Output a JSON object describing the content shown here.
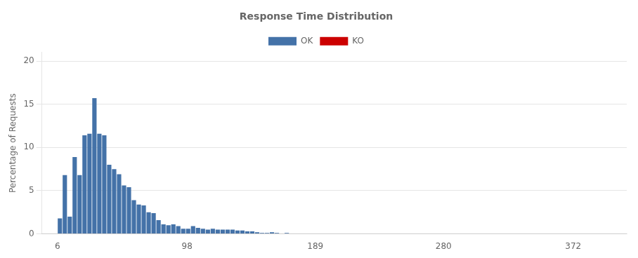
{
  "chart_data": {
    "type": "histogram",
    "title": "Response Time Distribution",
    "ylabel": "Percentage of Requests",
    "bins": [
      6,
      9.5,
      13,
      16.5,
      20,
      23.5,
      27,
      30.5,
      34,
      37.5,
      41,
      44.5,
      48,
      51.5,
      55,
      58.5,
      62,
      65.5,
      69,
      72.5,
      76,
      79.5,
      83,
      86.5,
      90,
      93.5,
      97,
      100.5,
      104,
      107.5,
      111,
      114.5,
      118,
      121.5,
      125,
      128.5,
      132,
      135.5,
      139,
      142.5,
      146,
      149.5,
      153,
      156.5,
      160,
      163.5,
      167,
      170.5,
      174,
      177.5,
      181
    ],
    "series": [
      {
        "name": "OK",
        "color": "#4472a8",
        "values": [
          1.8,
          6.8,
          2.0,
          8.9,
          6.8,
          11.4,
          11.6,
          15.7,
          11.6,
          11.4,
          8.0,
          7.5,
          6.9,
          5.6,
          5.4,
          3.9,
          3.4,
          3.3,
          2.5,
          2.4,
          1.6,
          1.1,
          1.0,
          1.1,
          0.9,
          0.6,
          0.6,
          0.9,
          0.7,
          0.6,
          0.5,
          0.6,
          0.5,
          0.5,
          0.5,
          0.5,
          0.4,
          0.4,
          0.3,
          0.3,
          0.2,
          0.1,
          0.1,
          0.2,
          0.1,
          0.0,
          0.1,
          0.0,
          0.0,
          0.0
        ]
      },
      {
        "name": "KO",
        "color": "#cc0000",
        "values": [
          null,
          null,
          null,
          null,
          null,
          null,
          null,
          null,
          null,
          null,
          null,
          null,
          null,
          null,
          null,
          null,
          null,
          null,
          null,
          null,
          null,
          null,
          null,
          null,
          null,
          null,
          null,
          null,
          null,
          null,
          null,
          null,
          null,
          null,
          null,
          null,
          null,
          null,
          null,
          null,
          null,
          null,
          null,
          null,
          null,
          null,
          null,
          null,
          null,
          null
        ]
      }
    ],
    "xlim": [
      -5,
      410
    ],
    "xticks": [
      6,
      98,
      189,
      280,
      372
    ],
    "ylim": [
      0,
      21
    ],
    "yticks": [
      0,
      5,
      10,
      15,
      20
    ],
    "grid": "y",
    "legend": "top"
  }
}
